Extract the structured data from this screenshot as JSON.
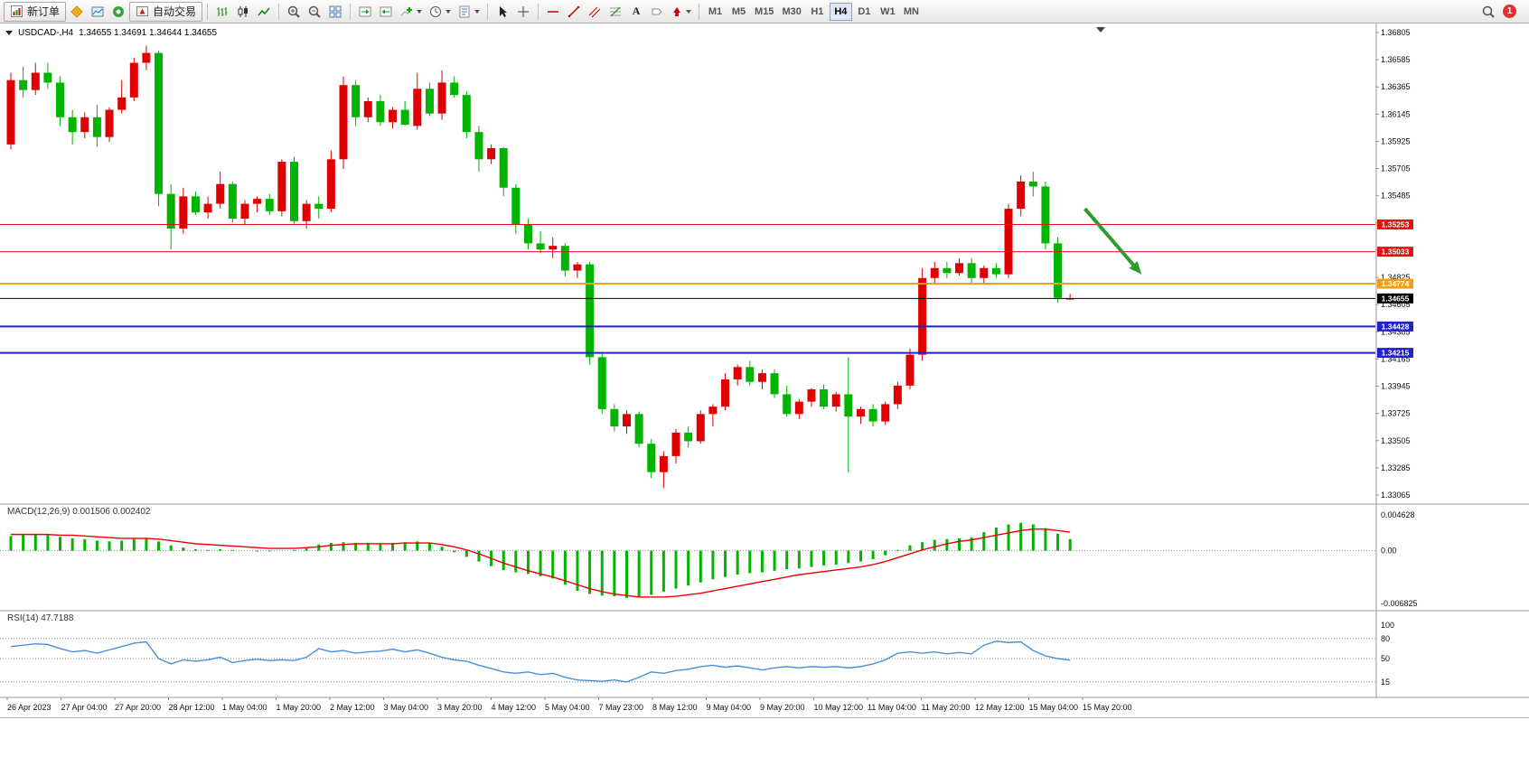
{
  "toolbar": {
    "new_order_label": "新订单",
    "auto_trading_label": "自动交易",
    "text_tool_label": "A",
    "timeframes": [
      "M1",
      "M5",
      "M15",
      "M30",
      "H1",
      "H4",
      "D1",
      "W1",
      "MN"
    ],
    "active_timeframe": "H4",
    "notification_badge": "1",
    "icon_names": [
      "new-order",
      "metaquotes",
      "charts",
      "community",
      "auto-trading",
      "ohlc-bars",
      "candlesticks",
      "line-chart",
      "zoom-in",
      "zoom-out",
      "tile-windows",
      "auto-scroll",
      "chart-shift",
      "indicators",
      "periods",
      "templates",
      "cursor",
      "crosshair",
      "horizontal-line",
      "trendline",
      "equidistant-channel",
      "fibonacci",
      "text",
      "text-label",
      "arrows",
      "search"
    ]
  },
  "chart_data": {
    "type": "candlestick",
    "title": "USDCAD-,H4",
    "symbol": "USDCAD-",
    "timeframe": "H4",
    "ohlc_text": "1.34655 1.34691 1.34644 1.34655",
    "last_bar": {
      "open": 1.34655,
      "high": 1.34691,
      "low": 1.34644,
      "close": 1.34655
    },
    "bull_color": "#e00000",
    "bear_color": "#00b400",
    "price_axis_ticks": [
      "1.36805",
      "1.36585",
      "1.36365",
      "1.36145",
      "1.35925",
      "1.35705",
      "1.35485",
      "1.35265",
      "1.35045",
      "1.34825",
      "1.34605",
      "1.34385",
      "1.34165",
      "1.33945",
      "1.33725",
      "1.33505",
      "1.33285",
      "1.33065"
    ],
    "time_axis_labels": [
      "26 Apr 2023",
      "27 Apr 04:00",
      "27 Apr 20:00",
      "28 Apr 12:00",
      "1 May 04:00",
      "1 May 20:00",
      "2 May 12:00",
      "3 May 04:00",
      "3 May 20:00",
      "4 May 12:00",
      "5 May 04:00",
      "7 May 23:00",
      "8 May 12:00",
      "9 May 04:00",
      "9 May 20:00",
      "10 May 12:00",
      "11 May 04:00",
      "11 May 20:00",
      "12 May 12:00",
      "15 May 04:00",
      "15 May 20:00"
    ],
    "candles": [
      [
        1.359,
        1.3648,
        1.3586,
        1.3642
      ],
      [
        1.3642,
        1.3653,
        1.3628,
        1.3634
      ],
      [
        1.3634,
        1.3656,
        1.363,
        1.3648
      ],
      [
        1.3648,
        1.3656,
        1.3635,
        1.364
      ],
      [
        1.364,
        1.3645,
        1.3605,
        1.3612
      ],
      [
        1.3612,
        1.3618,
        1.359,
        1.36
      ],
      [
        1.36,
        1.3616,
        1.3595,
        1.3612
      ],
      [
        1.3612,
        1.3622,
        1.3588,
        1.3596
      ],
      [
        1.3596,
        1.362,
        1.3592,
        1.3618
      ],
      [
        1.3618,
        1.3642,
        1.3615,
        1.3628
      ],
      [
        1.3628,
        1.366,
        1.3625,
        1.3656
      ],
      [
        1.3656,
        1.367,
        1.365,
        1.3664
      ],
      [
        1.3664,
        1.3666,
        1.354,
        1.355
      ],
      [
        1.355,
        1.3558,
        1.3505,
        1.3522
      ],
      [
        1.3522,
        1.3555,
        1.3518,
        1.3548
      ],
      [
        1.3548,
        1.3552,
        1.3533,
        1.3535
      ],
      [
        1.3535,
        1.3548,
        1.353,
        1.3542
      ],
      [
        1.3542,
        1.3568,
        1.3538,
        1.3558
      ],
      [
        1.3558,
        1.356,
        1.3527,
        1.353
      ],
      [
        1.353,
        1.3545,
        1.3525,
        1.3542
      ],
      [
        1.3542,
        1.3548,
        1.3535,
        1.3546
      ],
      [
        1.3546,
        1.355,
        1.3533,
        1.3536
      ],
      [
        1.3536,
        1.3578,
        1.3532,
        1.3576
      ],
      [
        1.3576,
        1.358,
        1.3526,
        1.3528
      ],
      [
        1.3528,
        1.3545,
        1.3522,
        1.3542
      ],
      [
        1.3542,
        1.3548,
        1.353,
        1.3538
      ],
      [
        1.3538,
        1.3585,
        1.3535,
        1.3578
      ],
      [
        1.3578,
        1.3645,
        1.357,
        1.3638
      ],
      [
        1.3638,
        1.3642,
        1.3605,
        1.3612
      ],
      [
        1.3612,
        1.3628,
        1.3608,
        1.3625
      ],
      [
        1.3625,
        1.363,
        1.3605,
        1.3608
      ],
      [
        1.3608,
        1.362,
        1.3603,
        1.3618
      ],
      [
        1.3618,
        1.3625,
        1.3605,
        1.3606
      ],
      [
        1.3605,
        1.3648,
        1.3602,
        1.3635
      ],
      [
        1.3635,
        1.364,
        1.3613,
        1.3615
      ],
      [
        1.3615,
        1.365,
        1.361,
        1.364
      ],
      [
        1.364,
        1.3645,
        1.3628,
        1.363
      ],
      [
        1.363,
        1.3633,
        1.3595,
        1.36
      ],
      [
        1.36,
        1.3605,
        1.3568,
        1.3578
      ],
      [
        1.3578,
        1.359,
        1.3574,
        1.3587
      ],
      [
        1.3587,
        1.3588,
        1.3548,
        1.3555
      ],
      [
        1.3555,
        1.3558,
        1.3518,
        1.3525
      ],
      [
        1.3525,
        1.353,
        1.3505,
        1.351
      ],
      [
        1.351,
        1.352,
        1.3502,
        1.3505
      ],
      [
        1.3505,
        1.3515,
        1.3498,
        1.3508
      ],
      [
        1.3508,
        1.351,
        1.3483,
        1.3488
      ],
      [
        1.3488,
        1.3495,
        1.3482,
        1.3493
      ],
      [
        1.3493,
        1.3495,
        1.3412,
        1.3418
      ],
      [
        1.3418,
        1.3422,
        1.3372,
        1.3376
      ],
      [
        1.3376,
        1.338,
        1.3358,
        1.3362
      ],
      [
        1.3362,
        1.3375,
        1.3356,
        1.3372
      ],
      [
        1.3372,
        1.3374,
        1.3345,
        1.3348
      ],
      [
        1.3348,
        1.3352,
        1.332,
        1.3325
      ],
      [
        1.3325,
        1.3342,
        1.3312,
        1.3338
      ],
      [
        1.3338,
        1.336,
        1.3332,
        1.3357
      ],
      [
        1.3357,
        1.3362,
        1.3345,
        1.335
      ],
      [
        1.335,
        1.3375,
        1.3348,
        1.3372
      ],
      [
        1.3372,
        1.338,
        1.3362,
        1.3378
      ],
      [
        1.3378,
        1.3405,
        1.3375,
        1.34
      ],
      [
        1.34,
        1.3412,
        1.3395,
        1.341
      ],
      [
        1.341,
        1.3415,
        1.3395,
        1.3398
      ],
      [
        1.3398,
        1.3408,
        1.3392,
        1.3405
      ],
      [
        1.3405,
        1.3408,
        1.3385,
        1.3388
      ],
      [
        1.3388,
        1.3395,
        1.337,
        1.3372
      ],
      [
        1.3372,
        1.3384,
        1.3368,
        1.3382
      ],
      [
        1.3382,
        1.3393,
        1.3378,
        1.3392
      ],
      [
        1.3392,
        1.3396,
        1.3376,
        1.3378
      ],
      [
        1.3378,
        1.339,
        1.3374,
        1.3388
      ],
      [
        1.3388,
        1.3418,
        1.3325,
        1.337
      ],
      [
        1.337,
        1.3378,
        1.3364,
        1.3376
      ],
      [
        1.3376,
        1.338,
        1.3362,
        1.3366
      ],
      [
        1.3366,
        1.3382,
        1.3363,
        1.338
      ],
      [
        1.338,
        1.3398,
        1.3376,
        1.3395
      ],
      [
        1.3395,
        1.3425,
        1.3392,
        1.342
      ],
      [
        1.342,
        1.349,
        1.3415,
        1.3482
      ],
      [
        1.3482,
        1.3495,
        1.3478,
        1.349
      ],
      [
        1.349,
        1.3495,
        1.3482,
        1.3486
      ],
      [
        1.3486,
        1.3498,
        1.3484,
        1.3494
      ],
      [
        1.3494,
        1.3498,
        1.3478,
        1.3482
      ],
      [
        1.3482,
        1.3492,
        1.3478,
        1.349
      ],
      [
        1.349,
        1.3494,
        1.3482,
        1.3485
      ],
      [
        1.3485,
        1.3542,
        1.3482,
        1.3538
      ],
      [
        1.3538,
        1.3565,
        1.3532,
        1.356
      ],
      [
        1.356,
        1.3568,
        1.3548,
        1.3556
      ],
      [
        1.3556,
        1.356,
        1.3505,
        1.351
      ],
      [
        1.351,
        1.3515,
        1.3462,
        1.3466
      ],
      [
        1.34655,
        1.34691,
        1.34644,
        1.34655
      ]
    ],
    "price_lines": [
      {
        "name": "resistance-line-1",
        "label": "1.35253",
        "price": 1.35253,
        "color": "#e81010",
        "width": 1
      },
      {
        "name": "resistance-line-2",
        "label": "1.35033",
        "price": 1.35033,
        "color": "#e81010",
        "width": 1
      },
      {
        "name": "pivot-line",
        "label": "1.34774",
        "price": 1.34774,
        "color": "#f2a114",
        "width": 2
      },
      {
        "name": "current-price-line",
        "label": "1.34655",
        "price": 1.34655,
        "color": "#000000",
        "width": 1
      },
      {
        "name": "support-line-1",
        "label": "1.34428",
        "price": 1.34428,
        "color": "#2222cc",
        "width": 2
      },
      {
        "name": "support-line-2",
        "label": "1.34215",
        "price": 1.34215,
        "color": "#2222cc",
        "width": 2
      }
    ],
    "annotations": [
      {
        "type": "arrow",
        "color": "#2e9b2e",
        "x_start_index": 87.2,
        "price_start": 1.3538,
        "x_end_index": 91.8,
        "price_end": 1.3485
      }
    ],
    "indicators": {
      "macd": {
        "label": "MACD(12,26,9)",
        "main_value": "0.001506",
        "signal_value": "0.002402",
        "axis_ticks": [
          "0.004628",
          "0.00",
          "-0.006825"
        ],
        "histogram_color": "#00b400",
        "signal_color": "#ee0000",
        "histogram": [
          0.0019,
          0.002,
          0.0021,
          0.002,
          0.0018,
          0.0016,
          0.0015,
          0.0013,
          0.0012,
          0.0013,
          0.0015,
          0.0016,
          0.0012,
          0.0007,
          0.0004,
          0.0002,
          0.0001,
          0.0002,
          0.0001,
          0.0,
          -0.0001,
          -0.0001,
          0.0,
          0.0001,
          0.0003,
          0.0008,
          0.001,
          0.0011,
          0.001,
          0.001,
          0.0009,
          0.001,
          0.0011,
          0.0012,
          0.001,
          0.0005,
          -0.0002,
          -0.0008,
          -0.0014,
          -0.002,
          -0.0025,
          -0.0028,
          -0.003,
          -0.0033,
          -0.0036,
          -0.0044,
          -0.0052,
          -0.0056,
          -0.0058,
          -0.0059,
          -0.0061,
          -0.006,
          -0.0057,
          -0.0053,
          -0.0049,
          -0.0045,
          -0.0041,
          -0.0037,
          -0.0034,
          -0.0031,
          -0.0029,
          -0.0028,
          -0.0026,
          -0.0024,
          -0.0023,
          -0.0021,
          -0.0019,
          -0.0018,
          -0.0016,
          -0.0014,
          -0.0011,
          -0.0006,
          0.0001,
          0.0007,
          0.0011,
          0.0014,
          0.0015,
          0.0016,
          0.0017,
          0.0024,
          0.003,
          0.0034,
          0.0036,
          0.0034,
          0.0029,
          0.0022,
          0.0015
        ],
        "signal": [
          0.0021,
          0.0021,
          0.0021,
          0.0021,
          0.002,
          0.002,
          0.0019,
          0.0018,
          0.0017,
          0.0016,
          0.0016,
          0.0016,
          0.0015,
          0.0013,
          0.0011,
          0.0009,
          0.0008,
          0.0007,
          0.0006,
          0.0005,
          0.0004,
          0.0003,
          0.0003,
          0.0003,
          0.0004,
          0.0005,
          0.0007,
          0.0008,
          0.0009,
          0.0009,
          0.0009,
          0.0009,
          0.001,
          0.001,
          0.001,
          0.0008,
          0.0005,
          0.0001,
          -0.0004,
          -0.001,
          -0.0016,
          -0.0021,
          -0.0026,
          -0.003,
          -0.0034,
          -0.0039,
          -0.0044,
          -0.0049,
          -0.0053,
          -0.0056,
          -0.0058,
          -0.006,
          -0.006,
          -0.006,
          -0.0059,
          -0.0057,
          -0.0055,
          -0.0052,
          -0.0049,
          -0.0046,
          -0.0043,
          -0.004,
          -0.0037,
          -0.0034,
          -0.0031,
          -0.0029,
          -0.0027,
          -0.0025,
          -0.0023,
          -0.0021,
          -0.0018,
          -0.0014,
          -0.0009,
          -0.0004,
          0.0001,
          0.0005,
          0.0009,
          0.0012,
          0.0014,
          0.0017,
          0.002,
          0.0023,
          0.0026,
          0.0028,
          0.0028,
          0.0026,
          0.0024
        ]
      },
      "rsi": {
        "label": "RSI(14)",
        "value": "47.7188",
        "levels": [
          "100",
          "80",
          "50",
          "15"
        ],
        "line_color": "#4a90d9",
        "values": [
          68,
          70,
          72,
          71,
          65,
          60,
          62,
          58,
          63,
          68,
          73,
          75,
          50,
          42,
          48,
          46,
          48,
          52,
          44,
          47,
          49,
          47,
          48,
          47,
          52,
          65,
          60,
          62,
          58,
          60,
          61,
          64,
          60,
          63,
          58,
          52,
          48,
          46,
          40,
          35,
          30,
          28,
          30,
          26,
          28,
          22,
          18,
          17,
          16,
          18,
          15,
          22,
          30,
          28,
          32,
          34,
          38,
          40,
          37,
          39,
          36,
          33,
          36,
          38,
          36,
          38,
          37,
          38,
          36,
          38,
          42,
          48,
          58,
          60,
          58,
          60,
          57,
          59,
          57,
          70,
          76,
          74,
          75,
          62,
          54,
          50,
          47.7188
        ]
      }
    }
  }
}
